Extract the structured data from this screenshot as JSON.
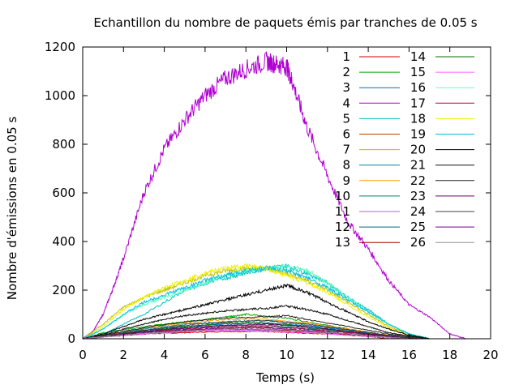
{
  "chart_data": {
    "type": "line",
    "title": "Echantillon du nombre de paquets émis par tranches de 0.05 s",
    "xlabel": "Temps (s)",
    "ylabel": "Nombre d'émissions en 0.05 s",
    "xlim": [
      0,
      20
    ],
    "ylim": [
      0,
      1200
    ],
    "xticks": [
      0,
      2,
      4,
      6,
      8,
      10,
      12,
      14,
      16,
      18,
      20
    ],
    "yticks": [
      0,
      200,
      400,
      600,
      800,
      1000,
      1200
    ],
    "grid": false,
    "legend_position": "top-right",
    "series": [
      {
        "name": "1",
        "color": "#d00000",
        "x": [
          0,
          1,
          3,
          5,
          7,
          9,
          10,
          12,
          14,
          15
        ],
        "y": [
          0,
          10,
          20,
          25,
          30,
          30,
          25,
          20,
          10,
          0
        ]
      },
      {
        "name": "2",
        "color": "#00a000",
        "x": [
          0,
          1,
          3,
          5,
          7,
          8,
          10,
          12,
          14,
          16
        ],
        "y": [
          0,
          25,
          50,
          70,
          90,
          100,
          85,
          55,
          25,
          0
        ]
      },
      {
        "name": "3",
        "color": "#0070c0",
        "x": [
          0,
          1,
          3,
          5,
          7,
          9,
          11,
          13,
          15,
          17
        ],
        "y": [
          0,
          15,
          35,
          50,
          60,
          65,
          55,
          35,
          15,
          0
        ]
      },
      {
        "name": "4",
        "color": "#b000d0",
        "x": [
          0,
          0.5,
          1,
          1.5,
          2,
          3,
          4,
          5,
          6,
          7,
          8,
          9,
          9.5,
          10,
          10.3,
          11,
          12,
          13,
          14,
          15,
          16,
          17,
          18,
          18.8
        ],
        "y": [
          0,
          30,
          100,
          210,
          330,
          600,
          780,
          900,
          1000,
          1070,
          1110,
          1140,
          1130,
          1120,
          1050,
          870,
          670,
          480,
          370,
          240,
          140,
          90,
          20,
          0
        ]
      },
      {
        "name": "5",
        "color": "#00c0c0",
        "x": [
          0,
          1,
          3,
          5,
          7,
          8,
          9,
          10,
          11,
          12,
          13,
          14,
          15,
          16,
          17
        ],
        "y": [
          0,
          20,
          100,
          200,
          250,
          270,
          290,
          300,
          270,
          230,
          170,
          120,
          60,
          20,
          0
        ]
      },
      {
        "name": "6",
        "color": "#c04000",
        "x": [
          0,
          1,
          3,
          5,
          7,
          9,
          11,
          13,
          15,
          16
        ],
        "y": [
          0,
          10,
          25,
          35,
          40,
          35,
          30,
          20,
          8,
          0
        ]
      },
      {
        "name": "7",
        "color": "#c0c000",
        "x": [
          0,
          1,
          2,
          3,
          4,
          5,
          6,
          7,
          8,
          9,
          10,
          11,
          12,
          13,
          14,
          15,
          16,
          17
        ],
        "y": [
          0,
          60,
          130,
          170,
          200,
          230,
          260,
          280,
          290,
          290,
          270,
          240,
          200,
          150,
          100,
          50,
          20,
          0
        ]
      },
      {
        "name": "8",
        "color": "#0080a0",
        "x": [
          0,
          1,
          3,
          5,
          7,
          9,
          11,
          13,
          15,
          16.5
        ],
        "y": [
          0,
          15,
          40,
          60,
          70,
          75,
          60,
          35,
          12,
          0
        ]
      },
      {
        "name": "9",
        "color": "#ffa000",
        "x": [
          0,
          1,
          3,
          5,
          7,
          9,
          11,
          13,
          15,
          16.5
        ],
        "y": [
          0,
          15,
          45,
          65,
          80,
          80,
          65,
          40,
          15,
          0
        ]
      },
      {
        "name": "10",
        "color": "#008060",
        "x": [
          0,
          1,
          3,
          5,
          7,
          9,
          11,
          13,
          15,
          16
        ],
        "y": [
          0,
          12,
          30,
          45,
          55,
          55,
          45,
          28,
          10,
          0
        ]
      },
      {
        "name": "11",
        "color": "#a060ff",
        "x": [
          0,
          1,
          3,
          5,
          7,
          9,
          11,
          13,
          15,
          16
        ],
        "y": [
          0,
          8,
          20,
          30,
          35,
          35,
          30,
          18,
          6,
          0
        ]
      },
      {
        "name": "12",
        "color": "#006080",
        "x": [
          0,
          1,
          3,
          5,
          7,
          9,
          11,
          13,
          15,
          16
        ],
        "y": [
          0,
          10,
          25,
          40,
          50,
          50,
          40,
          25,
          8,
          0
        ]
      },
      {
        "name": "13",
        "color": "#a00000",
        "x": [
          0,
          1,
          3,
          5,
          7,
          9,
          11,
          13,
          15,
          16
        ],
        "y": [
          0,
          8,
          20,
          30,
          40,
          40,
          30,
          18,
          6,
          0
        ]
      },
      {
        "name": "14",
        "color": "#007000",
        "x": [
          0,
          1,
          3,
          5,
          7,
          9,
          11,
          13,
          15,
          16
        ],
        "y": [
          0,
          12,
          35,
          50,
          65,
          65,
          50,
          30,
          10,
          0
        ]
      },
      {
        "name": "15",
        "color": "#ff60ff",
        "x": [
          0,
          1,
          3,
          5,
          7,
          9,
          11,
          13,
          15,
          16
        ],
        "y": [
          0,
          8,
          20,
          30,
          35,
          30,
          25,
          15,
          5,
          0
        ]
      },
      {
        "name": "16",
        "color": "#60ffc0",
        "x": [
          0,
          1,
          2,
          3,
          4,
          5,
          6,
          7,
          8,
          9,
          10,
          11,
          12,
          13,
          14,
          15,
          16,
          17
        ],
        "y": [
          0,
          40,
          100,
          140,
          170,
          200,
          230,
          260,
          280,
          290,
          300,
          280,
          230,
          170,
          110,
          60,
          20,
          0
        ]
      },
      {
        "name": "17",
        "color": "#c00040",
        "x": [
          0,
          1,
          3,
          5,
          7,
          9,
          11,
          13,
          15,
          16
        ],
        "y": [
          0,
          10,
          30,
          40,
          50,
          50,
          40,
          25,
          8,
          0
        ]
      },
      {
        "name": "18",
        "color": "#f0f000",
        "x": [
          0,
          1,
          2,
          3,
          4,
          5,
          6,
          7,
          8,
          9,
          10,
          11,
          12,
          13,
          14,
          15,
          16,
          17
        ],
        "y": [
          0,
          50,
          120,
          170,
          210,
          240,
          270,
          290,
          300,
          290,
          260,
          230,
          190,
          140,
          90,
          45,
          15,
          0
        ]
      },
      {
        "name": "19",
        "color": "#00c0e0",
        "x": [
          0,
          1,
          2,
          3,
          4,
          5,
          6,
          7,
          8,
          9,
          10,
          11,
          12,
          13,
          14,
          15,
          16,
          17
        ],
        "y": [
          0,
          40,
          100,
          150,
          180,
          210,
          240,
          260,
          280,
          290,
          280,
          250,
          210,
          160,
          110,
          60,
          20,
          0
        ]
      },
      {
        "name": "20",
        "color": "#000000",
        "x": [
          0,
          1,
          2,
          3,
          4,
          5,
          6,
          7,
          8,
          9,
          10,
          11,
          12,
          13,
          14,
          15,
          16,
          17
        ],
        "y": [
          0,
          20,
          50,
          80,
          100,
          120,
          140,
          160,
          180,
          200,
          220,
          190,
          150,
          110,
          70,
          40,
          15,
          0
        ]
      },
      {
        "name": "21",
        "color": "#101010",
        "x": [
          0,
          1,
          2,
          3,
          4,
          5,
          6,
          7,
          8,
          9,
          10,
          11,
          12,
          13,
          14,
          15,
          16,
          17
        ],
        "y": [
          0,
          15,
          40,
          60,
          80,
          95,
          105,
          115,
          120,
          125,
          135,
          120,
          100,
          75,
          50,
          25,
          10,
          0
        ]
      },
      {
        "name": "22",
        "color": "#202020",
        "x": [
          0,
          1,
          3,
          5,
          7,
          9,
          10,
          11,
          13,
          15,
          16.5
        ],
        "y": [
          0,
          15,
          45,
          70,
          85,
          90,
          95,
          80,
          50,
          20,
          0
        ]
      },
      {
        "name": "23",
        "color": "#600060",
        "x": [
          0,
          1,
          3,
          5,
          7,
          9,
          11,
          13,
          15,
          16.5
        ],
        "y": [
          0,
          10,
          30,
          45,
          55,
          60,
          50,
          30,
          12,
          0
        ]
      },
      {
        "name": "24",
        "color": "#404040",
        "x": [
          0,
          1,
          3,
          5,
          7,
          9,
          11,
          13,
          15,
          16.5
        ],
        "y": [
          0,
          12,
          35,
          55,
          70,
          75,
          60,
          38,
          15,
          0
        ]
      },
      {
        "name": "25",
        "color": "#700090",
        "x": [
          0,
          1,
          3,
          5,
          7,
          9,
          11,
          13,
          15,
          16
        ],
        "y": [
          0,
          8,
          25,
          35,
          45,
          45,
          35,
          20,
          8,
          0
        ]
      },
      {
        "name": "26",
        "color": "#909090",
        "x": [
          0,
          1,
          3,
          5,
          7,
          9,
          11,
          13,
          15,
          16
        ],
        "y": [
          0,
          8,
          22,
          32,
          40,
          40,
          32,
          20,
          6,
          0
        ]
      }
    ]
  }
}
